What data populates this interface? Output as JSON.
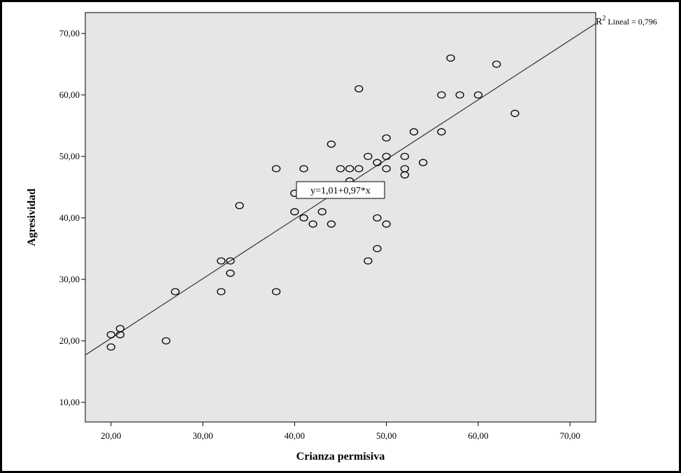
{
  "chart_data": {
    "type": "scatter",
    "title": "",
    "xlabel": "Crianza permisiva",
    "ylabel": "Agresividad",
    "xlim": [
      17.2,
      72.8
    ],
    "ylim": [
      6.8,
      73.4
    ],
    "xticks": [
      20,
      30,
      40,
      50,
      60,
      70
    ],
    "yticks": [
      10,
      20,
      30,
      40,
      50,
      60,
      70
    ],
    "xtick_labels": [
      "20,00",
      "30,00",
      "40,00",
      "50,00",
      "60,00",
      "70,00"
    ],
    "ytick_labels": [
      "10,00",
      "20,00",
      "30,00",
      "40,00",
      "50,00",
      "60,00",
      "70,00"
    ],
    "grid": false,
    "background": "#e6e6e6",
    "marker": "hollow-circle",
    "points": [
      {
        "x": 20,
        "y": 19
      },
      {
        "x": 20,
        "y": 21
      },
      {
        "x": 21,
        "y": 21
      },
      {
        "x": 21,
        "y": 22
      },
      {
        "x": 26,
        "y": 20
      },
      {
        "x": 27,
        "y": 28
      },
      {
        "x": 32,
        "y": 28
      },
      {
        "x": 32,
        "y": 33
      },
      {
        "x": 33,
        "y": 31
      },
      {
        "x": 33,
        "y": 33
      },
      {
        "x": 34,
        "y": 42
      },
      {
        "x": 38,
        "y": 28
      },
      {
        "x": 38,
        "y": 48
      },
      {
        "x": 40,
        "y": 41
      },
      {
        "x": 40,
        "y": 44
      },
      {
        "x": 41,
        "y": 40
      },
      {
        "x": 41,
        "y": 48
      },
      {
        "x": 42,
        "y": 39
      },
      {
        "x": 43,
        "y": 41
      },
      {
        "x": 44,
        "y": 39
      },
      {
        "x": 44,
        "y": 52
      },
      {
        "x": 45,
        "y": 48
      },
      {
        "x": 46,
        "y": 46
      },
      {
        "x": 46,
        "y": 48
      },
      {
        "x": 47,
        "y": 48
      },
      {
        "x": 47,
        "y": 61
      },
      {
        "x": 48,
        "y": 33
      },
      {
        "x": 48,
        "y": 50
      },
      {
        "x": 49,
        "y": 35
      },
      {
        "x": 49,
        "y": 40
      },
      {
        "x": 49,
        "y": 49
      },
      {
        "x": 50,
        "y": 39
      },
      {
        "x": 50,
        "y": 48
      },
      {
        "x": 50,
        "y": 50
      },
      {
        "x": 50,
        "y": 53
      },
      {
        "x": 52,
        "y": 47
      },
      {
        "x": 52,
        "y": 48
      },
      {
        "x": 52,
        "y": 50
      },
      {
        "x": 53,
        "y": 54
      },
      {
        "x": 54,
        "y": 49
      },
      {
        "x": 56,
        "y": 54
      },
      {
        "x": 56,
        "y": 60
      },
      {
        "x": 57,
        "y": 66
      },
      {
        "x": 58,
        "y": 60
      },
      {
        "x": 60,
        "y": 60
      },
      {
        "x": 62,
        "y": 65
      },
      {
        "x": 64,
        "y": 57
      }
    ],
    "fit_line": {
      "intercept": 1.01,
      "slope": 0.97
    },
    "equation_label": "y=1,01+0,97*x",
    "r2_label": {
      "main": "R",
      "sup": "2",
      "rest": " Lineal = 0,796"
    }
  }
}
